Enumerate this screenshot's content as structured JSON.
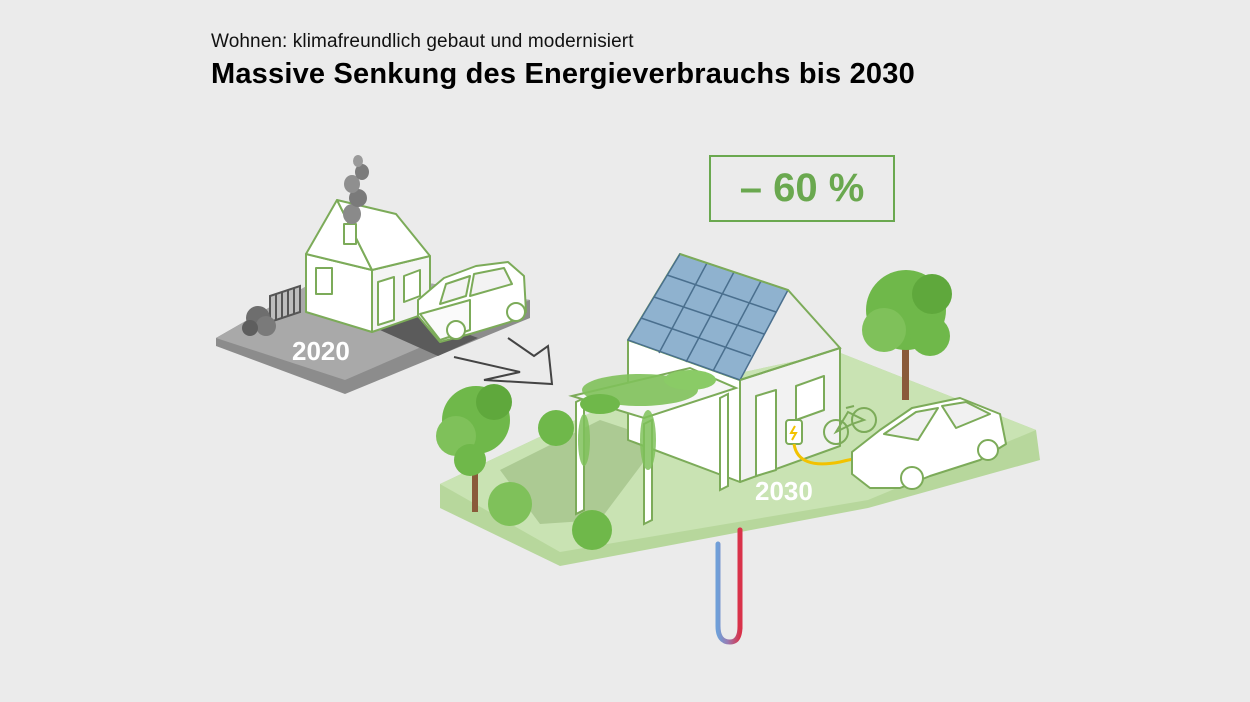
{
  "header": {
    "subtitle": "Wohnen: klimafreundlich gebaut und modernisiert",
    "title": "Massive Senkung des Energieverbrauchs bis 2030"
  },
  "scene_2020": {
    "year": "2020"
  },
  "scene_2030": {
    "year": "2030",
    "reduction": "– 60 %"
  },
  "colors": {
    "background": "#ebebeb",
    "accent_green": "#6aa84f",
    "ground_2020": "#a9a9a9",
    "ground_2030": "#c9e3b3",
    "tree_green": "#6fb84a",
    "solar_panel": "#8fb2cf",
    "pipe_cold": "#6f9fd8",
    "pipe_hot": "#d9324a",
    "charge_cable": "#f2c200"
  },
  "icons": [
    "house-2020-icon",
    "smoke-icon",
    "car-icon",
    "house-2030-icon",
    "solar-panel-icon",
    "tree-icon",
    "bicycle-icon",
    "electric-car-icon",
    "wallbox-icon",
    "geothermal-pipe-icon",
    "arrow-icon"
  ]
}
